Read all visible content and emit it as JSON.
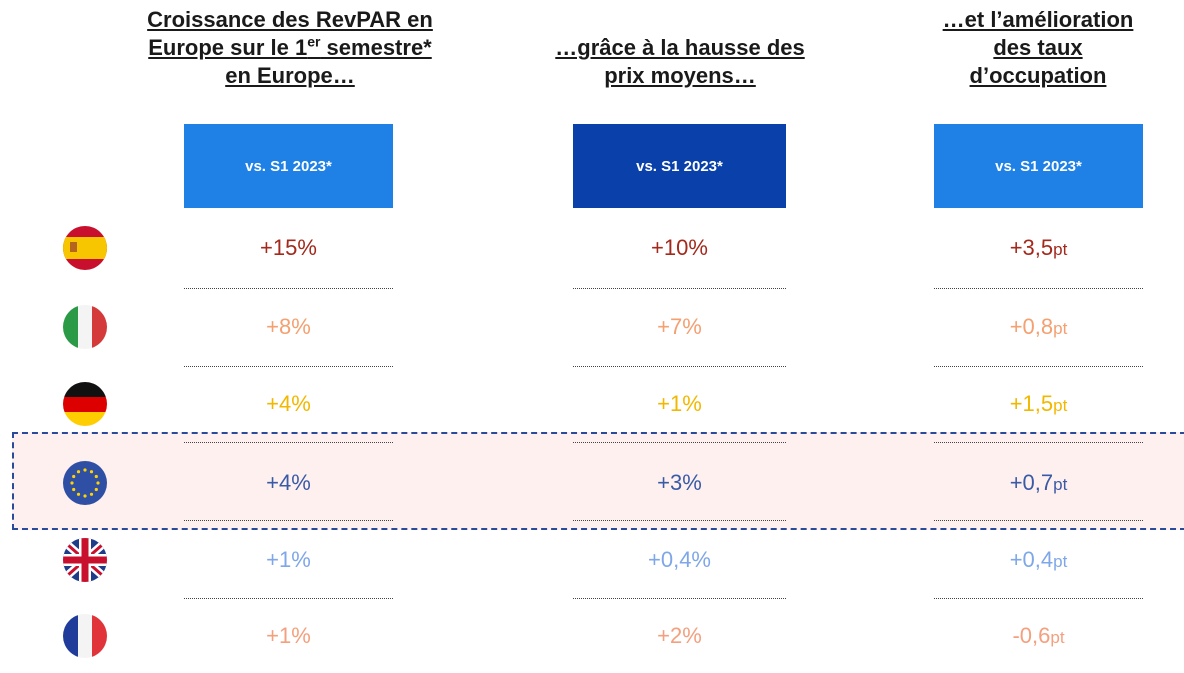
{
  "columns": [
    {
      "title": {
        "line1": "Croissance des RevPAR en",
        "line2a": "Europe sur le 1",
        "line2sup": "er",
        "line2b": " semestre*",
        "line3": "en  Europe…"
      },
      "header": "vs. S1 2023*",
      "header_color": "#1f80e6"
    },
    {
      "title": {
        "line1": "…grâce à la hausse des",
        "line2": "prix moyens…"
      },
      "header": "vs. S1 2023*",
      "header_color": "#0a40aa"
    },
    {
      "title": {
        "line1": "…et l’amélioration",
        "line2": "des taux",
        "line3": "d’occupation"
      },
      "header": "vs. S1 2023*",
      "header_color": "#1f80e6"
    }
  ],
  "rows": [
    {
      "color": "#a3291c",
      "cells": [
        "+15%",
        "+10%",
        {
          "value": "+3,5",
          "unit": "pt"
        }
      ]
    },
    {
      "color": "#f4a070",
      "cells": [
        "+8%",
        "+7%",
        {
          "value": "+0,8",
          "unit": "pt"
        }
      ]
    },
    {
      "color": "#f2b800",
      "cells": [
        "+4%",
        "+1%",
        {
          "value": "+1,5",
          "unit": "pt"
        }
      ]
    },
    {
      "color": "#3b5aa6",
      "cells": [
        "+4%",
        "+3%",
        {
          "value": "+0,7",
          "unit": "pt"
        }
      ]
    },
    {
      "color": "#7fa7e8",
      "cells": [
        "+1%",
        "+0,4%",
        {
          "value": "+0,4",
          "unit": "pt"
        }
      ]
    },
    {
      "color": "#f4a07e",
      "cells": [
        "+1%",
        "+2%",
        {
          "value": "-0,6",
          "unit": "pt"
        }
      ]
    }
  ]
}
